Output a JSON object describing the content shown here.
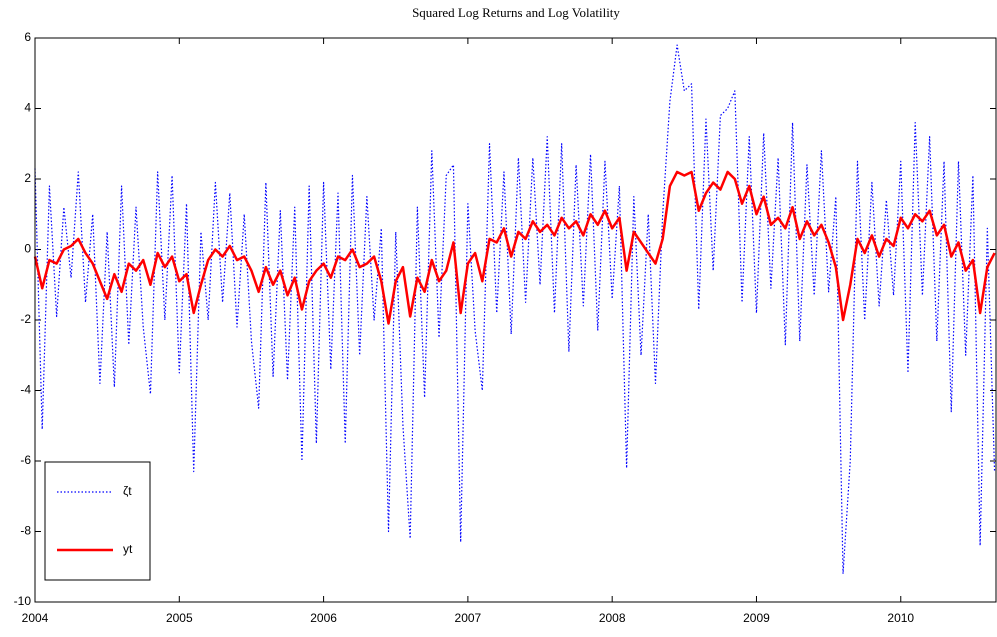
{
  "chart_data": {
    "type": "line",
    "title": "Squared Log Returns and Log Volatility",
    "x": [
      2004,
      2004.05,
      2004.1,
      2004.15,
      2004.2,
      2004.25,
      2004.3,
      2004.35,
      2004.4,
      2004.45,
      2004.5,
      2004.55,
      2004.6,
      2004.65,
      2004.7,
      2004.75,
      2004.8,
      2004.85,
      2004.9,
      2004.95,
      2005,
      2005.05,
      2005.1,
      2005.15,
      2005.2,
      2005.25,
      2005.3,
      2005.35,
      2005.4,
      2005.45,
      2005.5,
      2005.55,
      2005.6,
      2005.65,
      2005.7,
      2005.75,
      2005.8,
      2005.85,
      2005.9,
      2005.95,
      2006,
      2006.05,
      2006.1,
      2006.15,
      2006.2,
      2006.25,
      2006.3,
      2006.35,
      2006.4,
      2006.45,
      2006.5,
      2006.55,
      2006.6,
      2006.65,
      2006.7,
      2006.75,
      2006.8,
      2006.85,
      2006.9,
      2006.95,
      2007,
      2007.05,
      2007.1,
      2007.15,
      2007.2,
      2007.25,
      2007.3,
      2007.35,
      2007.4,
      2007.45,
      2007.5,
      2007.55,
      2007.6,
      2007.65,
      2007.7,
      2007.75,
      2007.8,
      2007.85,
      2007.9,
      2007.95,
      2008,
      2008.05,
      2008.1,
      2008.15,
      2008.2,
      2008.25,
      2008.3,
      2008.35,
      2008.4,
      2008.45,
      2008.5,
      2008.55,
      2008.6,
      2008.65,
      2008.7,
      2008.75,
      2008.8,
      2008.85,
      2008.9,
      2008.95,
      2009,
      2009.05,
      2009.1,
      2009.15,
      2009.2,
      2009.25,
      2009.3,
      2009.35,
      2009.4,
      2009.45,
      2009.5,
      2009.55,
      2009.6,
      2009.65,
      2009.7,
      2009.75,
      2009.8,
      2009.85,
      2009.9,
      2009.95,
      2010,
      2010.05,
      2010.1,
      2010.15,
      2010.2,
      2010.25,
      2010.3,
      2010.35,
      2010.4,
      2010.45,
      2010.5,
      2010.55,
      2010.6,
      2010.65
    ],
    "series": [
      {
        "name": "ζt",
        "color": "#0000ff",
        "style": "dotted",
        "values": [
          2.3,
          -5.1,
          1.8,
          -1.9,
          1.2,
          -0.8,
          2.2,
          -1.5,
          1.0,
          -3.8,
          0.5,
          -3.9,
          1.8,
          -2.7,
          1.2,
          -2.2,
          -4.1,
          2.2,
          -2.0,
          2.1,
          -3.5,
          1.3,
          -6.3,
          0.5,
          -2.0,
          1.9,
          -1.5,
          1.6,
          -2.2,
          1.0,
          -2.6,
          -4.5,
          1.9,
          -3.6,
          1.1,
          -3.7,
          1.2,
          -6.0,
          1.8,
          -5.5,
          1.9,
          -3.4,
          1.6,
          -5.5,
          2.1,
          -3.0,
          1.5,
          -2.0,
          0.6,
          -8.0,
          0.5,
          -5.0,
          -8.2,
          1.2,
          -4.2,
          2.8,
          -2.5,
          2.1,
          2.4,
          -8.3,
          1.3,
          -2.3,
          -4.0,
          3.0,
          -1.8,
          2.2,
          -2.4,
          2.6,
          -1.5,
          2.6,
          -1.0,
          3.2,
          -1.8,
          3.0,
          -2.9,
          2.4,
          -1.6,
          2.7,
          -2.3,
          2.5,
          -1.4,
          1.8,
          -6.2,
          1.5,
          -3.0,
          1.0,
          -3.8,
          1.0,
          4.2,
          5.8,
          4.5,
          4.7,
          -1.7,
          3.7,
          -0.6,
          3.8,
          4.0,
          4.5,
          -1.5,
          3.2,
          -1.8,
          3.3,
          -1.1,
          2.6,
          -2.7,
          3.6,
          -2.6,
          2.4,
          -1.3,
          2.8,
          -1.2,
          1.5,
          -9.2,
          -6.0,
          2.5,
          -2.0,
          1.9,
          -1.6,
          1.4,
          -1.3,
          2.5,
          -3.5,
          3.6,
          -1.3,
          3.2,
          -2.6,
          2.5,
          -4.6,
          2.5,
          -3.0,
          2.1,
          -8.4,
          0.6,
          -6.3
        ]
      },
      {
        "name": "yt",
        "color": "#ff0000",
        "style": "solid",
        "values": [
          -0.2,
          -1.1,
          -0.3,
          -0.4,
          0.0,
          0.1,
          0.3,
          -0.1,
          -0.4,
          -0.9,
          -1.4,
          -0.7,
          -1.2,
          -0.4,
          -0.6,
          -0.3,
          -1.0,
          -0.1,
          -0.5,
          -0.2,
          -0.9,
          -0.7,
          -1.8,
          -1.0,
          -0.3,
          0.0,
          -0.2,
          0.1,
          -0.3,
          -0.2,
          -0.6,
          -1.2,
          -0.5,
          -1.0,
          -0.6,
          -1.3,
          -0.8,
          -1.7,
          -0.9,
          -0.6,
          -0.4,
          -0.8,
          -0.2,
          -0.3,
          0.0,
          -0.5,
          -0.4,
          -0.2,
          -0.9,
          -2.1,
          -0.9,
          -0.5,
          -1.9,
          -0.8,
          -1.2,
          -0.3,
          -0.9,
          -0.6,
          0.2,
          -1.8,
          -0.4,
          -0.1,
          -0.9,
          0.3,
          0.2,
          0.6,
          -0.2,
          0.5,
          0.3,
          0.8,
          0.5,
          0.7,
          0.4,
          0.9,
          0.6,
          0.8,
          0.4,
          1.0,
          0.7,
          1.1,
          0.6,
          0.9,
          -0.6,
          0.5,
          0.2,
          -0.1,
          -0.4,
          0.3,
          1.8,
          2.2,
          2.1,
          2.2,
          1.1,
          1.6,
          1.9,
          1.7,
          2.2,
          2.0,
          1.3,
          1.8,
          1.0,
          1.5,
          0.7,
          0.9,
          0.6,
          1.2,
          0.3,
          0.8,
          0.4,
          0.7,
          0.2,
          -0.5,
          -2.0,
          -1.0,
          0.3,
          -0.1,
          0.4,
          -0.2,
          0.3,
          0.1,
          0.9,
          0.6,
          1.0,
          0.8,
          1.1,
          0.4,
          0.7,
          -0.2,
          0.2,
          -0.6,
          -0.3,
          -1.8,
          -0.5,
          -0.1
        ]
      }
    ],
    "xlim": [
      2004,
      2010.66
    ],
    "xticks": [
      2004,
      2005,
      2006,
      2007,
      2008,
      2009,
      2010
    ],
    "ylim": [
      -10,
      6
    ],
    "yticks": [
      -10,
      -8,
      -6,
      -4,
      -2,
      0,
      2,
      4,
      6
    ],
    "grid": false,
    "legend": "lower left"
  }
}
